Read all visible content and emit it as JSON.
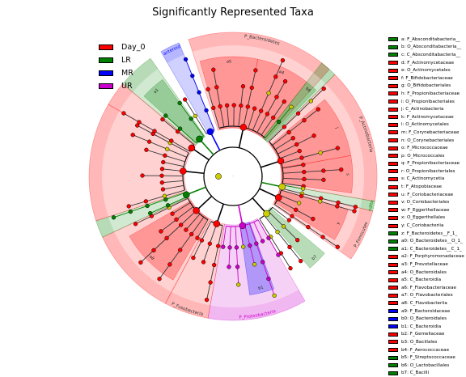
{
  "title": "Significantly Represented Taxa",
  "colors": {
    "Day_0": "#ff0000",
    "LR": "#008000",
    "MR": "#0000ff",
    "UR": "#cc00cc",
    "none": "#cccc00"
  },
  "legend": [
    {
      "label": "Day_0",
      "group": "Day_0"
    },
    {
      "label": "LR",
      "group": "LR"
    },
    {
      "label": "MR",
      "group": "MR"
    },
    {
      "label": "UR",
      "group": "UR"
    }
  ],
  "key": [
    {
      "label": "a: F_Abscondita­bacteria__",
      "group": "LR"
    },
    {
      "label": "b: O_Absconditabacteria__",
      "group": "LR"
    },
    {
      "label": "c: C_Absconditabacteria__",
      "group": "LR"
    },
    {
      "label": "d: F_Actinomycetaceae",
      "group": "Day_0"
    },
    {
      "label": "e: O_Actinomycetales",
      "group": "Day_0"
    },
    {
      "label": "f: F_Bifidobacteriaceae",
      "group": "Day_0"
    },
    {
      "label": "g: O_Bifidobacteriales",
      "group": "Day_0"
    },
    {
      "label": "h: F_Propionibacteriaceae",
      "group": "Day_0"
    },
    {
      "label": "i: O_Propionibacteriales",
      "group": "Day_0"
    },
    {
      "label": "j: C_Actinobacteria",
      "group": "Day_0"
    },
    {
      "label": "k: F_Actinomycetaceae",
      "group": "Day_0"
    },
    {
      "label": "l: O_Actinomycetales",
      "group": "Day_0"
    },
    {
      "label": "m: F_Corynebacteriaceae",
      "group": "Day_0"
    },
    {
      "label": "n: O_Corynebacteriales",
      "group": "Day_0"
    },
    {
      "label": "o: F_Micrococcaceae",
      "group": "Day_0"
    },
    {
      "label": "p: O_Micrococcales",
      "group": "Day_0"
    },
    {
      "label": "q: F_Propionibacteriaceae",
      "group": "Day_0"
    },
    {
      "label": "r: O_Propionibacteriales",
      "group": "Day_0"
    },
    {
      "label": "s: C_Actinomycetia",
      "group": "Day_0"
    },
    {
      "label": "t: F_Atopobiaceae",
      "group": "Day_0"
    },
    {
      "label": "u: F_Coriobacteriaceae",
      "group": "Day_0"
    },
    {
      "label": "v: O_Coriobacteriales",
      "group": "Day_0"
    },
    {
      "label": "w: F_Eggerthellaceae",
      "group": "Day_0"
    },
    {
      "label": "x: O_Eggerthellales",
      "group": "Day_0"
    },
    {
      "label": "y: C_Coriobacteriia",
      "group": "Day_0"
    },
    {
      "label": "z: F_Bacteroidetes__F_1_",
      "group": "LR"
    },
    {
      "label": "a0: O_Bacteroidetes__O_1_",
      "group": "LR"
    },
    {
      "label": "a1: C_Bacteroidetes__C_1_",
      "group": "LR"
    },
    {
      "label": "a2: F_Porphyromonadaceae",
      "group": "Day_0"
    },
    {
      "label": "a3: F_Prevotellaceae",
      "group": "Day_0"
    },
    {
      "label": "a4: O_Bacteroidales",
      "group": "Day_0"
    },
    {
      "label": "a5: C_Bacteroidia",
      "group": "Day_0"
    },
    {
      "label": "a6: F_Flavobacteriaceae",
      "group": "Day_0"
    },
    {
      "label": "a7: O_Flavobacteriales",
      "group": "Day_0"
    },
    {
      "label": "a8: C_Flavobacteriia",
      "group": "Day_0"
    },
    {
      "label": "a9: F_Bacteroidaceae",
      "group": "MR"
    },
    {
      "label": "b0: O_Bacteroidales",
      "group": "MR"
    },
    {
      "label": "b1: C_Bacteroidia",
      "group": "MR"
    },
    {
      "label": "b2: F_Gemellaceae",
      "group": "Day_0"
    },
    {
      "label": "b3: O_Bacillales",
      "group": "Day_0"
    },
    {
      "label": "b4: F_Aerococcaceae",
      "group": "Day_0"
    },
    {
      "label": "b5: F_Streptococcaceae",
      "group": "LR"
    },
    {
      "label": "b6: O_Lactobacillales",
      "group": "LR"
    },
    {
      "label": "b7: C_Bacilli",
      "group": "LR"
    }
  ],
  "cladogram": {
    "root_label": ".",
    "sectors": [
      {
        "label": "P_Bacteroidetes",
        "group": "Day_0",
        "start": -18,
        "end": 42
      },
      {
        "label": "P_Actinobacteria",
        "group": "Day_0",
        "start": 45,
        "end": 100
      },
      {
        "label": "P_Absconditabacteria",
        "group": "LR",
        "start": 100,
        "end": 104
      },
      {
        "label": "P_Firmicutes",
        "group": "Day_0",
        "start": 104,
        "end": 125
      },
      {
        "label": "P_Proteobacteria",
        "group": "UR",
        "start": 150,
        "end": 190
      },
      {
        "label": "P_Fusobacteria",
        "group": "Day_0",
        "start": 190,
        "end": 208
      },
      {
        "label": "",
        "group": "Day_0",
        "start": 208,
        "end": 245
      },
      {
        "label": "",
        "group": "LR",
        "start": 245,
        "end": 252
      },
      {
        "label": "",
        "group": "Day_0",
        "start": 252,
        "end": 300
      },
      {
        "label": "P_Bacteroidota",
        "group": "MR",
        "start": 330,
        "end": 338
      },
      {
        "label": "",
        "group": "LR",
        "start": 310,
        "end": 325
      },
      {
        "label": "",
        "group": "Day_0",
        "start": 300,
        "end": 310
      },
      {
        "label": "",
        "group": "LR",
        "start": 38,
        "end": 45
      }
    ],
    "inner_sectors": [
      {
        "label": "a5",
        "group": "Day_0",
        "start": -16,
        "end": 12
      },
      {
        "label": "a4",
        "group": "Day_0",
        "start": 12,
        "end": 38
      },
      {
        "label": "j",
        "group": "Day_0",
        "start": 50,
        "end": 80
      },
      {
        "label": "s",
        "group": "Day_0",
        "start": 80,
        "end": 98
      },
      {
        "label": "y",
        "group": "Day_0",
        "start": 106,
        "end": 122
      },
      {
        "label": "b7",
        "group": "LR",
        "start": 130,
        "end": 140
      },
      {
        "label": "b1",
        "group": "MR",
        "start": 160,
        "end": 172
      },
      {
        "label": "a8",
        "group": "Day_0",
        "start": 210,
        "end": 240
      },
      {
        "label": "a1",
        "group": "LR",
        "start": 312,
        "end": 324
      },
      {
        "label": "b6",
        "group": "LR",
        "start": 38,
        "end": 44
      }
    ]
  }
}
